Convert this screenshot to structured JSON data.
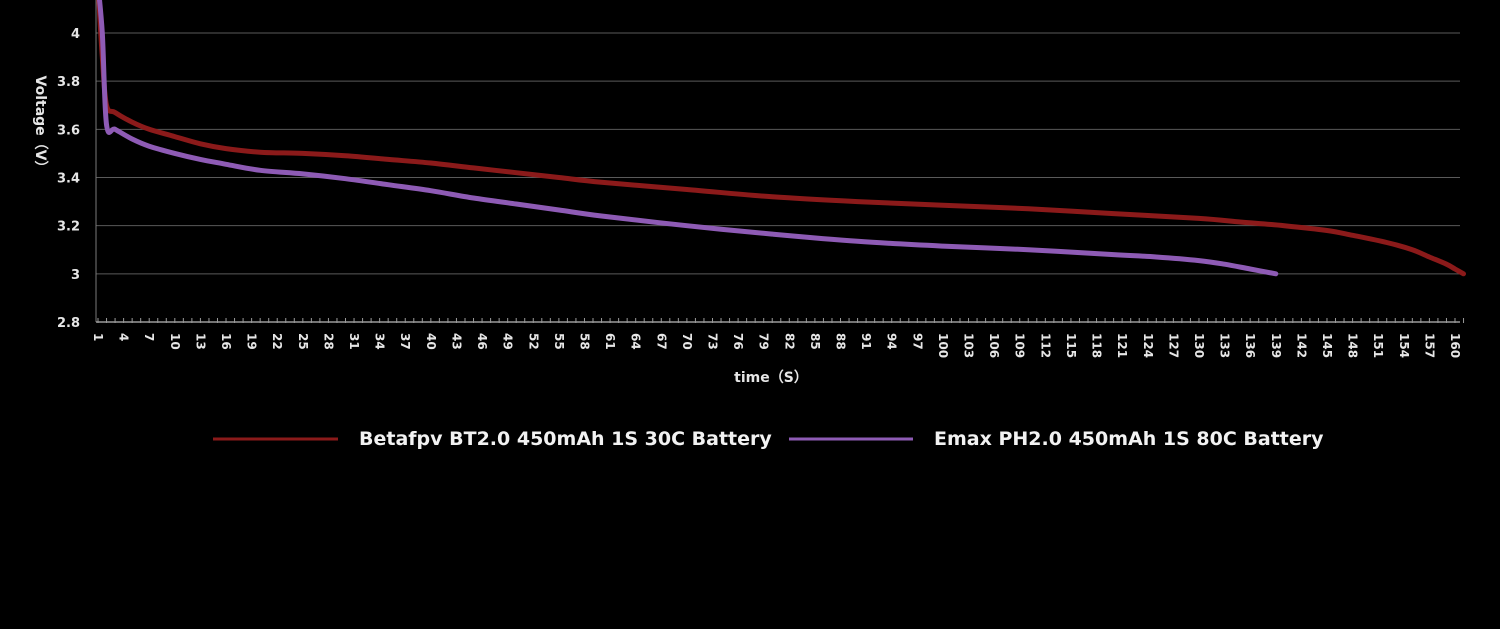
{
  "chart_data": {
    "type": "line",
    "xlabel": "time（S）",
    "ylabel": "Voltage（V）",
    "x_ticks": [
      "1",
      "4",
      "7",
      "10",
      "13",
      "16",
      "19",
      "22",
      "25",
      "28",
      "31",
      "34",
      "37",
      "40",
      "43",
      "46",
      "49",
      "52",
      "55",
      "58",
      "61",
      "64",
      "67",
      "70",
      "73",
      "76",
      "79",
      "82",
      "85",
      "88",
      "91",
      "94",
      "97",
      "100",
      "103",
      "106",
      "109",
      "112",
      "115",
      "118",
      "121",
      "124",
      "127",
      "130",
      "133",
      "136",
      "139",
      "142",
      "145",
      "148",
      "151",
      "154",
      "157",
      "160"
    ],
    "y_ticks": [
      "2.8",
      "3",
      "3.2",
      "3.4",
      "3.6",
      "3.8",
      "4"
    ],
    "xlim": [
      1,
      161
    ],
    "ylim": [
      2.8,
      4.2
    ],
    "grid": true,
    "legend_position": "bottom",
    "series": [
      {
        "name": "Betafpv BT2.0 450mAh 1S 30C Battery",
        "color": "#8b1a1a",
        "x": [
          1,
          1.5,
          2,
          3,
          5,
          7,
          10,
          13,
          16,
          20,
          25,
          30,
          35,
          40,
          45,
          50,
          55,
          60,
          70,
          80,
          90,
          100,
          110,
          120,
          130,
          135,
          140,
          145,
          148,
          152,
          155,
          157,
          159,
          160,
          161
        ],
        "y": [
          4.2,
          3.9,
          3.7,
          3.67,
          3.63,
          3.6,
          3.57,
          3.54,
          3.52,
          3.505,
          3.5,
          3.49,
          3.475,
          3.46,
          3.44,
          3.42,
          3.4,
          3.38,
          3.35,
          3.32,
          3.3,
          3.285,
          3.27,
          3.25,
          3.23,
          3.215,
          3.2,
          3.18,
          3.16,
          3.13,
          3.1,
          3.07,
          3.04,
          3.02,
          3.0
        ]
      },
      {
        "name": "Emax PH2.0 450mAh 1S 80C Battery",
        "color": "#8e5bb5",
        "x": [
          1,
          1.5,
          2,
          3,
          5,
          7,
          10,
          13,
          16,
          20,
          25,
          30,
          35,
          40,
          45,
          50,
          55,
          60,
          70,
          80,
          90,
          100,
          110,
          120,
          125,
          130,
          133,
          136,
          139
        ],
        "y": [
          4.2,
          4.0,
          3.62,
          3.6,
          3.56,
          3.53,
          3.5,
          3.475,
          3.455,
          3.43,
          3.415,
          3.395,
          3.37,
          3.345,
          3.315,
          3.29,
          3.265,
          3.24,
          3.2,
          3.165,
          3.135,
          3.115,
          3.1,
          3.08,
          3.07,
          3.055,
          3.04,
          3.02,
          3.0
        ]
      }
    ]
  }
}
